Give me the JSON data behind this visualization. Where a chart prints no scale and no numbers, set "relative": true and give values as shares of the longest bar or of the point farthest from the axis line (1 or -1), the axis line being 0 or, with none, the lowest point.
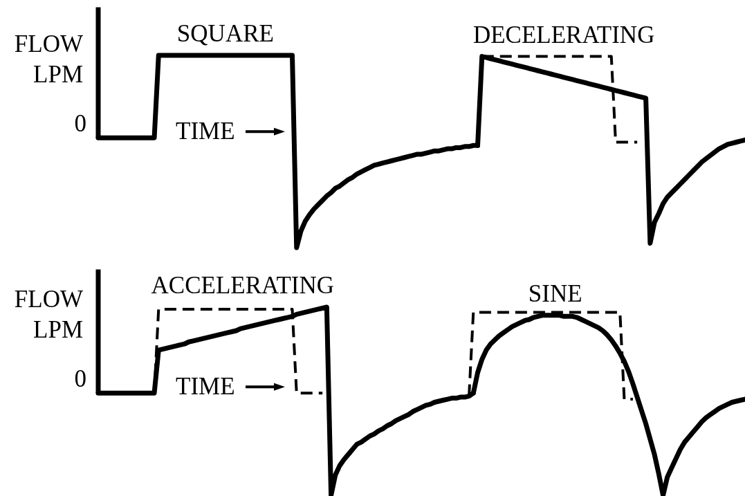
{
  "chart_data": [
    {
      "type": "line",
      "xlabel": "TIME",
      "ylabel": "FLOW LPM",
      "relative": true,
      "line_style": "solid",
      "annotations": [
        "0"
      ],
      "categories": [
        null,
        null,
        null,
        null,
        null,
        null,
        null,
        null,
        null,
        null,
        null,
        null,
        null,
        null,
        null,
        null,
        null,
        null,
        null,
        null,
        null,
        null,
        null,
        null,
        null,
        null,
        null,
        null,
        null,
        null,
        null,
        null,
        null,
        null,
        null,
        null,
        null,
        null,
        null,
        null,
        null,
        null,
        null,
        null,
        null,
        null,
        null,
        null,
        null,
        null,
        null,
        null,
        null,
        null,
        null,
        null,
        null,
        null,
        null,
        null,
        null,
        null,
        null,
        null,
        null,
        null,
        null,
        null,
        null,
        null,
        null,
        null,
        null,
        null,
        null,
        null,
        null,
        null,
        null,
        null,
        null,
        null,
        null,
        null,
        null,
        null,
        null,
        null,
        null,
        null,
        null,
        null,
        null,
        null,
        null,
        null,
        null,
        null,
        null,
        null,
        null,
        null,
        null,
        null,
        null,
        null,
        null,
        null,
        null,
        null,
        null,
        null,
        null,
        null,
        null,
        null,
        null,
        null,
        null,
        null,
        null,
        null,
        null,
        null,
        null,
        null,
        null,
        null,
        null,
        null,
        null,
        null,
        null,
        null,
        null,
        null,
        null,
        null,
        null,
        null,
        null,
        null,
        null,
        null,
        null,
        null,
        null,
        null,
        null,
        null,
        null
      ],
      "series": [
        {
          "name": "SQUARE",
          "color": "#000000",
          "values": [
            0,
            0,
            0,
            0,
            0,
            0,
            0,
            0,
            0,
            0,
            0,
            0,
            0,
            0,
            0.75,
            0.75,
            0.75,
            0.75,
            0.75,
            0.75,
            0.75,
            0.75,
            0.75,
            0.75,
            0.75,
            0.75,
            0.75,
            0.75,
            0.75,
            0.75,
            0.75,
            0.75,
            0.75,
            0.75,
            0.75,
            0.75,
            0.75,
            0.75,
            0.75,
            0.75,
            0.75,
            0.75,
            0.75,
            0.75,
            0.75,
            0.75,
            -1,
            -0.85,
            -0.76,
            -0.7,
            -0.65,
            -0.61,
            -0.57,
            -0.53,
            -0.5,
            -0.46,
            -0.44,
            -0.41,
            -0.38,
            -0.36,
            -0.33,
            -0.31,
            -0.29,
            -0.27,
            -0.25,
            -0.24,
            -0.23,
            -0.22,
            -0.21,
            -0.2,
            -0.19,
            -0.18,
            -0.17,
            -0.16,
            -0.15,
            -0.15,
            -0.14,
            -0.13,
            -0.12,
            -0.12,
            -0.11,
            -0.1,
            -0.1,
            -0.09,
            -0.09,
            -0.08,
            -0.08,
            -0.07,
            -0.07,
            null,
            null,
            null,
            null,
            null,
            null,
            null,
            null,
            null,
            null,
            null,
            null,
            null,
            null,
            null,
            null,
            null,
            null,
            null,
            null,
            null,
            null,
            null,
            null,
            null,
            null,
            null,
            null,
            null,
            null,
            null,
            null,
            null,
            null,
            null,
            null,
            null,
            null,
            null,
            null,
            null,
            null,
            null,
            null,
            null,
            null,
            null,
            null,
            null,
            null,
            null,
            null,
            null,
            null,
            null,
            null,
            null,
            null,
            null,
            null,
            null,
            null
          ]
        },
        {
          "name": "DECELERATING",
          "color": "#000000",
          "values": [
            null,
            null,
            null,
            null,
            null,
            null,
            null,
            null,
            null,
            null,
            null,
            null,
            null,
            null,
            null,
            null,
            null,
            null,
            null,
            null,
            null,
            null,
            null,
            null,
            null,
            null,
            null,
            null,
            null,
            null,
            null,
            null,
            null,
            null,
            null,
            null,
            null,
            null,
            null,
            null,
            null,
            null,
            null,
            null,
            null,
            null,
            null,
            null,
            null,
            null,
            null,
            null,
            null,
            null,
            null,
            null,
            null,
            null,
            null,
            null,
            null,
            null,
            null,
            null,
            null,
            null,
            null,
            null,
            null,
            null,
            null,
            null,
            null,
            null,
            null,
            null,
            null,
            null,
            null,
            null,
            null,
            null,
            null,
            null,
            null,
            null,
            null,
            null,
            -0.07,
            0.74,
            0.73,
            0.72,
            0.71,
            0.7,
            0.69,
            0.68,
            0.67,
            0.66,
            0.65,
            0.64,
            0.63,
            0.62,
            0.61,
            0.6,
            0.59,
            0.58,
            0.57,
            0.56,
            0.55,
            0.54,
            0.53,
            0.52,
            0.51,
            0.5,
            0.49,
            0.48,
            0.47,
            0.46,
            0.45,
            0.44,
            0.43,
            0.42,
            0.41,
            0.4,
            0.39,
            0.38,
            0.37,
            0.36,
            -0.96,
            -0.77,
            -0.69,
            -0.6,
            -0.54,
            -0.5,
            -0.46,
            -0.42,
            -0.38,
            -0.34,
            -0.3,
            -0.26,
            -0.22,
            -0.19,
            -0.16,
            -0.13,
            -0.1,
            -0.08,
            -0.06,
            -0.05,
            -0.04,
            -0.03,
            -0.02
          ]
        },
        {
          "color": "#000000",
          "line_style": "dashed",
          "values": [
            null,
            null,
            null,
            null,
            null,
            null,
            null,
            null,
            null,
            null,
            null,
            null,
            null,
            null,
            null,
            null,
            null,
            null,
            null,
            null,
            null,
            null,
            null,
            null,
            null,
            null,
            null,
            null,
            null,
            null,
            null,
            null,
            null,
            null,
            null,
            null,
            null,
            null,
            null,
            null,
            null,
            null,
            null,
            null,
            null,
            null,
            null,
            null,
            null,
            null,
            null,
            null,
            null,
            null,
            null,
            null,
            null,
            null,
            null,
            null,
            null,
            null,
            null,
            null,
            null,
            null,
            null,
            null,
            null,
            null,
            null,
            null,
            null,
            null,
            null,
            null,
            null,
            null,
            null,
            null,
            null,
            null,
            null,
            null,
            null,
            null,
            null,
            null,
            null,
            0.74,
            0.74,
            0.74,
            0.74,
            0.74,
            0.74,
            0.74,
            0.74,
            0.74,
            0.74,
            0.74,
            0.74,
            0.74,
            0.74,
            0.74,
            0.74,
            0.74,
            0.74,
            0.74,
            0.74,
            0.74,
            0.74,
            0.74,
            0.74,
            0.74,
            0.74,
            0.74,
            0.74,
            0.74,
            0.74,
            0.74,
            -0.04,
            -0.04,
            -0.04,
            -0.04,
            -0.04,
            -0.04,
            null,
            null,
            null,
            null,
            null,
            null,
            null,
            null,
            null,
            null,
            null,
            null,
            null,
            null,
            null,
            null,
            null,
            null,
            null,
            null,
            null,
            null,
            null,
            null,
            null
          ]
        }
      ]
    },
    {
      "type": "line",
      "xlabel": "TIME",
      "ylabel": "FLOW LPM",
      "relative": true,
      "line_style": "solid",
      "annotations": [
        "0"
      ],
      "categories": [
        null,
        null,
        null,
        null,
        null,
        null,
        null,
        null,
        null,
        null,
        null,
        null,
        null,
        null,
        null,
        null,
        null,
        null,
        null,
        null,
        null,
        null,
        null,
        null,
        null,
        null,
        null,
        null,
        null,
        null,
        null,
        null,
        null,
        null,
        null,
        null,
        null,
        null,
        null,
        null,
        null,
        null,
        null,
        null,
        null,
        null,
        null,
        null,
        null,
        null,
        null,
        null,
        null,
        null,
        null,
        null,
        null,
        null,
        null,
        null,
        null,
        null,
        null,
        null,
        null,
        null,
        null,
        null,
        null,
        null,
        null,
        null,
        null,
        null,
        null,
        null,
        null,
        null,
        null,
        null,
        null,
        null,
        null,
        null,
        null,
        null,
        null,
        null,
        null,
        null,
        null,
        null,
        null,
        null,
        null,
        null,
        null,
        null,
        null,
        null,
        null,
        null,
        null,
        null,
        null,
        null,
        null,
        null,
        null,
        null,
        null,
        null,
        null,
        null,
        null,
        null,
        null,
        null,
        null,
        null,
        null,
        null,
        null,
        null,
        null,
        null,
        null,
        null,
        null,
        null,
        null,
        null,
        null,
        null,
        null,
        null,
        null,
        null,
        null,
        null,
        null,
        null,
        null,
        null,
        null,
        null,
        null,
        null,
        null,
        null,
        null
      ],
      "series": [
        {
          "name": "ACCELERATING",
          "color": "#000000",
          "values": [
            0,
            0,
            0,
            0,
            0,
            0,
            0,
            0,
            0,
            0,
            0,
            0,
            0,
            0,
            0.42,
            0.43,
            0.44,
            0.45,
            0.46,
            0.47,
            0.48,
            0.5,
            0.51,
            0.52,
            0.53,
            0.54,
            0.55,
            0.56,
            0.57,
            0.58,
            0.59,
            0.6,
            0.61,
            0.63,
            0.64,
            0.65,
            0.66,
            0.67,
            0.68,
            0.69,
            0.7,
            0.71,
            0.72,
            0.73,
            0.74,
            0.75,
            0.77,
            0.78,
            0.79,
            0.8,
            0.81,
            0.82,
            0.83,
            0.84,
            -1,
            -0.8,
            -0.71,
            -0.65,
            -0.6,
            -0.55,
            -0.5,
            -0.48,
            -0.45,
            -0.42,
            -0.4,
            -0.37,
            -0.35,
            -0.32,
            -0.3,
            -0.27,
            -0.25,
            -0.23,
            -0.21,
            -0.18,
            -0.16,
            -0.14,
            -0.12,
            -0.11,
            -0.09,
            -0.08,
            -0.07,
            -0.06,
            -0.05,
            -0.05,
            -0.04,
            -0.04,
            -0.03,
            0,
            null,
            null,
            null,
            null,
            null,
            null,
            null,
            null,
            null,
            null,
            null,
            null,
            null,
            null,
            null,
            null,
            null,
            null,
            null,
            null,
            null,
            null,
            null,
            null,
            null,
            null,
            null,
            null,
            null,
            null,
            null,
            null,
            null,
            null,
            null,
            null,
            null,
            null,
            null,
            null,
            null,
            null,
            null,
            null,
            null,
            null,
            null,
            null,
            null,
            null,
            null,
            null,
            null,
            null,
            null,
            null,
            null,
            null,
            null,
            null,
            null,
            null,
            null
          ]
        },
        {
          "name": "SINE",
          "color": "#000000",
          "values": [
            null,
            null,
            null,
            null,
            null,
            null,
            null,
            null,
            null,
            null,
            null,
            null,
            null,
            null,
            null,
            null,
            null,
            null,
            null,
            null,
            null,
            null,
            null,
            null,
            null,
            null,
            null,
            null,
            null,
            null,
            null,
            null,
            null,
            null,
            null,
            null,
            null,
            null,
            null,
            null,
            null,
            null,
            null,
            null,
            null,
            null,
            null,
            null,
            null,
            null,
            null,
            null,
            null,
            null,
            null,
            null,
            null,
            null,
            null,
            null,
            null,
            null,
            null,
            null,
            null,
            null,
            null,
            null,
            null,
            null,
            null,
            null,
            null,
            null,
            null,
            null,
            null,
            null,
            null,
            null,
            null,
            null,
            null,
            null,
            null,
            null,
            null,
            0,
            0.2,
            0.33,
            0.42,
            0.48,
            0.52,
            0.56,
            0.59,
            0.62,
            0.65,
            0.67,
            0.69,
            0.71,
            0.72,
            0.74,
            0.75,
            0.76,
            0.76,
            0.76,
            0.76,
            0.76,
            0.75,
            0.75,
            0.75,
            0.74,
            0.72,
            0.7,
            0.68,
            0.66,
            0.64,
            0.61,
            0.57,
            0.52,
            0.46,
            0.39,
            0.31,
            0.21,
            0.09,
            -0.04,
            -0.17,
            -0.3,
            -0.45,
            -0.6,
            -0.79,
            -1,
            -0.82,
            -0.73,
            -0.64,
            -0.55,
            -0.48,
            -0.43,
            -0.38,
            -0.33,
            -0.28,
            -0.24,
            -0.21,
            -0.18,
            -0.15,
            -0.13,
            -0.11,
            -0.09,
            -0.08,
            -0.07,
            -0.06
          ]
        },
        {
          "color": "#000000",
          "line_style": "dashed",
          "values": [
            null,
            null,
            null,
            null,
            null,
            null,
            null,
            null,
            null,
            null,
            null,
            null,
            null,
            0,
            0.82,
            0.82,
            0.82,
            0.82,
            0.82,
            0.82,
            0.82,
            0.82,
            0.82,
            0.82,
            0.82,
            0.82,
            0.82,
            0.82,
            0.82,
            0.82,
            0.82,
            0.82,
            0.82,
            0.82,
            0.82,
            0.82,
            0.82,
            0.82,
            0.82,
            0.82,
            0.82,
            0.82,
            0.82,
            0.82,
            0.82,
            0.82,
            0,
            0,
            0,
            0,
            0,
            0,
            0,
            null,
            null,
            null,
            null,
            null,
            null,
            null,
            null,
            null,
            null,
            null,
            null,
            null,
            null,
            null,
            null,
            null,
            null,
            null,
            null,
            null,
            null,
            null,
            null,
            null,
            null,
            null,
            null,
            null,
            null,
            null,
            null,
            null,
            -0.03,
            0.79,
            0.79,
            0.79,
            0.79,
            0.79,
            0.79,
            0.79,
            0.79,
            0.79,
            0.79,
            0.79,
            0.79,
            0.79,
            0.79,
            0.79,
            0.79,
            0.79,
            0.79,
            0.79,
            0.79,
            0.79,
            0.79,
            0.79,
            0.79,
            0.79,
            0.79,
            0.79,
            0.79,
            0.79,
            0.79,
            0.79,
            0.79,
            0.79,
            0.79,
            0.79,
            -0.06,
            -0.06,
            -0.06,
            null,
            null,
            null,
            null,
            null,
            null,
            null,
            null,
            null,
            null,
            null,
            null,
            null,
            null,
            null,
            null,
            null,
            null,
            null,
            null,
            null,
            null,
            null,
            null,
            null,
            null
          ]
        }
      ]
    }
  ]
}
